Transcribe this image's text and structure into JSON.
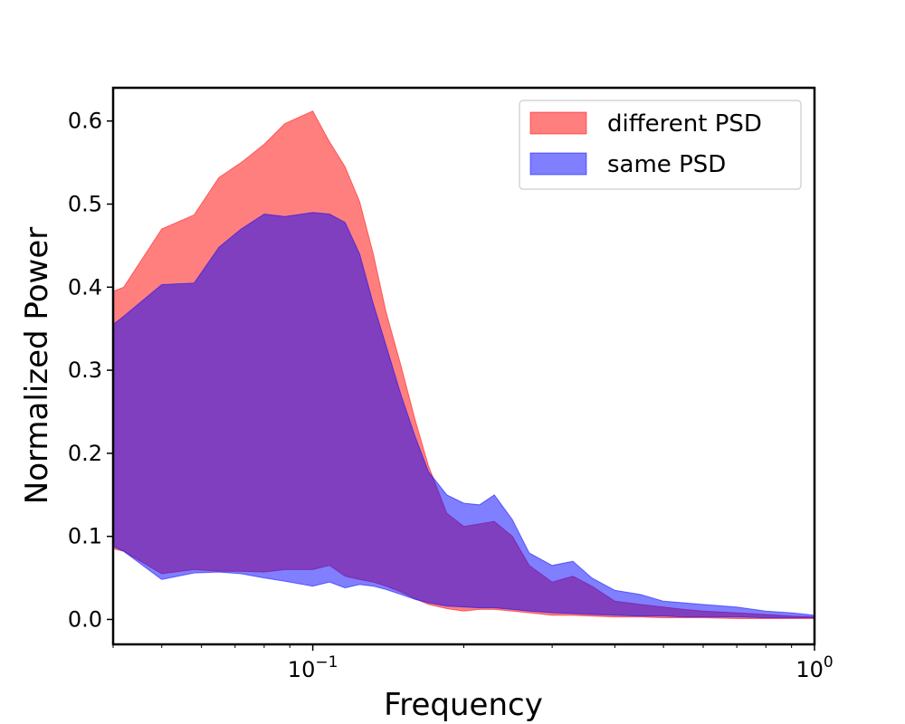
{
  "chart_data": {
    "type": "area",
    "title": "",
    "xlabel": "Frequency",
    "ylabel": "Normalized Power",
    "xscale": "log",
    "xlim": [
      0.04,
      1.0
    ],
    "ylim": [
      -0.03,
      0.64
    ],
    "yticks": [
      0.0,
      0.1,
      0.2,
      0.3,
      0.4,
      0.5,
      0.6
    ],
    "ytick_labels": [
      "0.0",
      "0.1",
      "0.2",
      "0.3",
      "0.4",
      "0.5",
      "0.6"
    ],
    "xticks": [
      0.1,
      1.0
    ],
    "xtick_labels": [
      {
        "base": "10",
        "exp": "−1"
      },
      {
        "base": "10",
        "exp": "0"
      }
    ],
    "grid": false,
    "legend_position": "top-right",
    "series": [
      {
        "name": "different PSD",
        "color": "#ff0000",
        "opacity": 0.5,
        "x": [
          0.04,
          0.042,
          0.05,
          0.058,
          0.065,
          0.072,
          0.08,
          0.088,
          0.1,
          0.108,
          0.116,
          0.124,
          0.132,
          0.14,
          0.15,
          0.16,
          0.17,
          0.185,
          0.2,
          0.215,
          0.23,
          0.25,
          0.27,
          0.3,
          0.33,
          0.36,
          0.4,
          0.45,
          0.5,
          0.55,
          0.6,
          0.7,
          0.8,
          0.9,
          1.0
        ],
        "upper": [
          0.395,
          0.4,
          0.47,
          0.487,
          0.532,
          0.55,
          0.572,
          0.597,
          0.612,
          0.575,
          0.545,
          0.503,
          0.44,
          0.37,
          0.305,
          0.24,
          0.185,
          0.128,
          0.112,
          0.115,
          0.118,
          0.1,
          0.065,
          0.045,
          0.052,
          0.04,
          0.022,
          0.018,
          0.015,
          0.012,
          0.01,
          0.008,
          0.006,
          0.004,
          0.003
        ],
        "lower": [
          0.085,
          0.082,
          0.055,
          0.06,
          0.058,
          0.058,
          0.057,
          0.06,
          0.06,
          0.065,
          0.052,
          0.048,
          0.045,
          0.04,
          0.033,
          0.025,
          0.018,
          0.013,
          0.01,
          0.012,
          0.012,
          0.01,
          0.008,
          0.005,
          0.005,
          0.004,
          0.003,
          0.003,
          0.002,
          0.002,
          0.002,
          0.001,
          0.001,
          0.001,
          0.001
        ]
      },
      {
        "name": "same PSD",
        "color": "#0000ff",
        "opacity": 0.5,
        "x": [
          0.04,
          0.042,
          0.05,
          0.058,
          0.065,
          0.072,
          0.08,
          0.088,
          0.1,
          0.108,
          0.116,
          0.124,
          0.132,
          0.14,
          0.15,
          0.16,
          0.17,
          0.185,
          0.2,
          0.215,
          0.23,
          0.25,
          0.27,
          0.3,
          0.33,
          0.36,
          0.4,
          0.45,
          0.5,
          0.55,
          0.6,
          0.7,
          0.8,
          0.9,
          1.0
        ],
        "upper": [
          0.355,
          0.365,
          0.403,
          0.405,
          0.448,
          0.47,
          0.488,
          0.485,
          0.49,
          0.488,
          0.478,
          0.44,
          0.38,
          0.33,
          0.27,
          0.22,
          0.178,
          0.15,
          0.14,
          0.138,
          0.15,
          0.12,
          0.08,
          0.065,
          0.07,
          0.05,
          0.035,
          0.03,
          0.022,
          0.02,
          0.018,
          0.015,
          0.01,
          0.008,
          0.005
        ],
        "lower": [
          0.088,
          0.082,
          0.048,
          0.056,
          0.057,
          0.055,
          0.05,
          0.046,
          0.04,
          0.045,
          0.038,
          0.042,
          0.04,
          0.036,
          0.03,
          0.024,
          0.02,
          0.016,
          0.015,
          0.014,
          0.014,
          0.012,
          0.01,
          0.008,
          0.007,
          0.006,
          0.005,
          0.004,
          0.004,
          0.003,
          0.003,
          0.003,
          0.002,
          0.002,
          0.002
        ]
      }
    ]
  }
}
